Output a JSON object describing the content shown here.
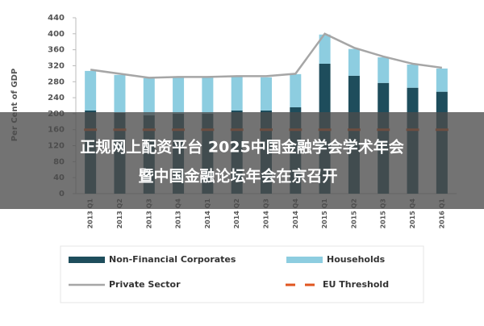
{
  "chart_data": {
    "type": "bar",
    "y_label": "Per Cent of GDP",
    "categories": [
      "2013 Q1",
      "2013 Q2",
      "2013 Q3",
      "2013 Q4",
      "2014 Q1",
      "2014 Q2",
      "2014 Q3",
      "2014 Q4",
      "2015 Q1",
      "2015 Q2",
      "2015 Q3",
      "2015 Q4",
      "2016 Q1"
    ],
    "series": [
      {
        "name": "Non-Financial Corporates",
        "style": "stacked-bar",
        "color": "#1e4d5c",
        "values": [
          208,
          202,
          196,
          200,
          200,
          208,
          208,
          216,
          325,
          295,
          277,
          265,
          255
        ]
      },
      {
        "name": "Households",
        "style": "stacked-bar",
        "color": "#8dcde0",
        "values": [
          99,
          95,
          93,
          91,
          91,
          85,
          83,
          83,
          73,
          67,
          64,
          58,
          58
        ]
      },
      {
        "name": "Private Sector",
        "style": "line",
        "color": "#a6a6a6",
        "values": [
          310,
          300,
          290,
          292,
          292,
          294,
          294,
          300,
          400,
          365,
          343,
          325,
          315
        ]
      },
      {
        "name": "EU Threshold",
        "style": "dashed-line",
        "color": "#e0561f",
        "values": [
          160,
          160,
          160,
          160,
          160,
          160,
          160,
          160,
          160,
          160,
          160,
          160,
          160
        ]
      }
    ],
    "ylim": [
      0,
      440
    ],
    "yticks": [
      0,
      40,
      80,
      120,
      160,
      200,
      240,
      280,
      320,
      360,
      400,
      440
    ],
    "grid": false
  },
  "banner": {
    "lines": [
      "正规网上配资平台 2025中国金融学会学术年会",
      "暨中国金融论坛年会在京召开"
    ]
  }
}
